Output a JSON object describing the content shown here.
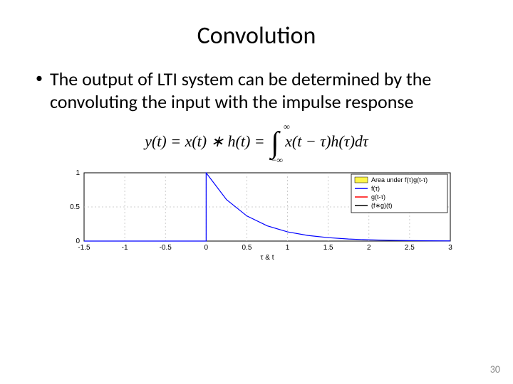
{
  "title": "Convolution",
  "bullet": "The output of LTI system can be determined by the convoluting the input with the impulse response",
  "equation": {
    "lhs": "y(t) = x(t) ∗ h(t) =",
    "upper": "∞",
    "lower": "−∞",
    "rhs": "x(t − τ)h(τ)dτ"
  },
  "chart": {
    "type": "line",
    "background_color": "#ffffff",
    "axis_color": "#000000",
    "grid_color": "#c0c0c0",
    "grid_dash": "2,3",
    "xlim": [
      -1.5,
      3.0
    ],
    "ylim": [
      0,
      1
    ],
    "xticks": [
      -1.5,
      -1,
      -0.5,
      0,
      0.5,
      1,
      1.5,
      2,
      2.5,
      3
    ],
    "yticks": [
      0,
      0.5,
      1
    ],
    "tick_fontsize": 10,
    "xlabel": "τ & t",
    "xlabel_fontsize": 10,
    "legend": {
      "position": "top-right",
      "border_color": "#000000",
      "bg_color": "#ffffff",
      "fontsize": 9,
      "items": [
        {
          "label": "Area under f(τ)g(t-τ)",
          "color": "#fff64a",
          "type": "patch"
        },
        {
          "label": "f(τ)",
          "color": "#0000ff",
          "type": "line"
        },
        {
          "label": "g(t-τ)",
          "color": "#ff0000",
          "type": "line"
        },
        {
          "label": "(f∗g)(t)",
          "color": "#000000",
          "type": "line"
        }
      ]
    },
    "series": [
      {
        "name": "f_tau",
        "color": "#0000ff",
        "line_width": 1.2,
        "points": [
          [
            -1.5,
            0
          ],
          [
            0,
            0
          ],
          [
            0,
            1
          ],
          [
            0.001,
            1
          ],
          [
            0.001,
            0.998
          ],
          [
            0.25,
            0.607
          ],
          [
            0.5,
            0.368
          ],
          [
            0.75,
            0.223
          ],
          [
            1.0,
            0.135
          ],
          [
            1.25,
            0.082
          ],
          [
            1.5,
            0.05
          ],
          [
            1.75,
            0.03
          ],
          [
            2.0,
            0.018
          ],
          [
            2.25,
            0.011
          ],
          [
            2.5,
            0.0067
          ],
          [
            2.75,
            0.0041
          ],
          [
            3.0,
            0.0025
          ]
        ]
      }
    ]
  },
  "page_number": "30",
  "colors": {
    "text": "#000000",
    "page_num": "#8a8a8a"
  }
}
